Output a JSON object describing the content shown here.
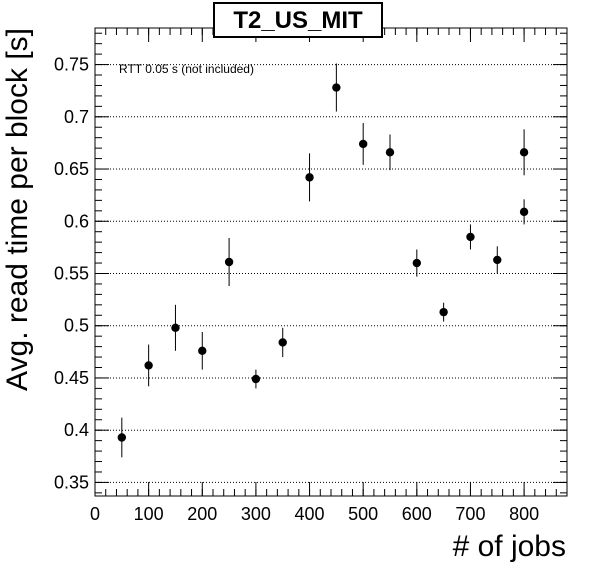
{
  "chart_data": {
    "type": "scatter",
    "title": "T2_US_MIT",
    "xlabel": "# of jobs",
    "ylabel": "Avg. read time per block [s]",
    "annotation": "RTT 0.05 s (not included)",
    "xlim": [
      0,
      880
    ],
    "ylim": [
      0.337,
      0.785
    ],
    "xticks": [
      0,
      100,
      200,
      300,
      400,
      500,
      600,
      700,
      800
    ],
    "yticks": [
      0.35,
      0.4,
      0.45,
      0.5,
      0.55,
      0.6,
      0.65,
      0.7,
      0.75
    ],
    "ytick_labels": [
      "0.35",
      "0.4",
      "0.45",
      "0.5",
      "0.55",
      "0.6",
      "0.65",
      "0.7",
      "0.75"
    ],
    "grid_y": true,
    "points": [
      {
        "x": 50,
        "y": 0.393,
        "err": 0.019
      },
      {
        "x": 100,
        "y": 0.462,
        "err": 0.02
      },
      {
        "x": 150,
        "y": 0.498,
        "err": 0.022
      },
      {
        "x": 200,
        "y": 0.476,
        "err": 0.018
      },
      {
        "x": 250,
        "y": 0.561,
        "err": 0.023
      },
      {
        "x": 300,
        "y": 0.449,
        "err": 0.009
      },
      {
        "x": 350,
        "y": 0.484,
        "err": 0.014
      },
      {
        "x": 400,
        "y": 0.642,
        "err": 0.023
      },
      {
        "x": 450,
        "y": 0.728,
        "err": 0.023
      },
      {
        "x": 500,
        "y": 0.674,
        "err": 0.02
      },
      {
        "x": 550,
        "y": 0.666,
        "err": 0.017
      },
      {
        "x": 600,
        "y": 0.56,
        "err": 0.013
      },
      {
        "x": 650,
        "y": 0.513,
        "err": 0.009
      },
      {
        "x": 700,
        "y": 0.585,
        "err": 0.012
      },
      {
        "x": 750,
        "y": 0.563,
        "err": 0.013
      },
      {
        "x": 800,
        "y": 0.609,
        "err": 0.012
      },
      {
        "x": 800,
        "y": 0.666,
        "err": 0.022
      }
    ]
  }
}
